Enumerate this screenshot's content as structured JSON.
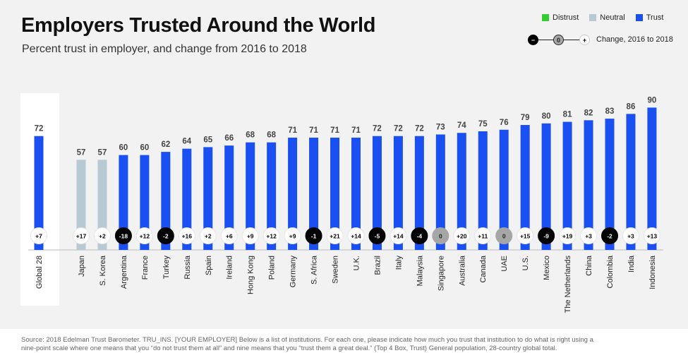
{
  "header": {
    "title": "Employers Trusted Around the World",
    "subtitle": "Percent trust in employer, and change from 2016 to 2018"
  },
  "legend": {
    "items": [
      {
        "label": "Distrust",
        "color": "#33cc33"
      },
      {
        "label": "Neutral",
        "color": "#b7c9d3"
      },
      {
        "label": "Trust",
        "color": "#1a4ff2"
      }
    ],
    "change": {
      "minus": "−",
      "zero": "0",
      "plus": "+",
      "label": "Change, 2016 to 2018"
    }
  },
  "source": "Source: 2018 Edelman Trust Barometer. TRU_INS. [YOUR EMPLOYER] Below is a list of institutions. For each one, please indicate how much you trust that institution to do what is right using a nine-point scale where one means that you “do not trust them at all” and nine means that you “trust them a great deal.” (Top 4 Box, Trust) General population, 28-country global total.",
  "chart_data": {
    "type": "bar",
    "title": "Employers Trusted Around the World",
    "subtitle": "Percent trust in employer, and change from 2016 to 2018",
    "ylim": [
      0,
      100
    ],
    "grid": false,
    "legend_position": "top-right",
    "colors": {
      "trust": "#1a4ff2",
      "neutral": "#b7c9d3",
      "distrust": "#33cc33",
      "decline": "#000000",
      "no_change": "#a6a6a6",
      "increase": "#ffffff"
    },
    "categories": [
      "Global 28",
      "Japan",
      "S. Korea",
      "Argentina",
      "France",
      "Turkey",
      "Russia",
      "Spain",
      "Ireland",
      "Hong Kong",
      "Poland",
      "Germany",
      "S. Africa",
      "Sweden",
      "U.K.",
      "Brazil",
      "Italy",
      "Malaysia",
      "Singapore",
      "Australia",
      "Canada",
      "UAE",
      "U.S.",
      "Mexico",
      "The Netherlands",
      "China",
      "Colombia",
      "India",
      "Indonesia"
    ],
    "values": [
      72,
      57,
      57,
      60,
      60,
      62,
      64,
      65,
      66,
      68,
      68,
      71,
      71,
      71,
      71,
      72,
      72,
      72,
      73,
      74,
      75,
      76,
      79,
      80,
      81,
      82,
      83,
      86,
      90
    ],
    "status": [
      "trust",
      "neutral",
      "neutral",
      "trust",
      "trust",
      "trust",
      "trust",
      "trust",
      "trust",
      "trust",
      "trust",
      "trust",
      "trust",
      "trust",
      "trust",
      "trust",
      "trust",
      "trust",
      "trust",
      "trust",
      "trust",
      "trust",
      "trust",
      "trust",
      "trust",
      "trust",
      "trust",
      "trust",
      "trust"
    ],
    "change_labels": [
      "+7",
      "+17",
      "+2",
      "-18",
      "+12",
      "-2",
      "+16",
      "+2",
      "+6",
      "+9",
      "+12",
      "+9",
      "-1",
      "+21",
      "+14",
      "-5",
      "+14",
      "-4",
      "0",
      "+20",
      "+11",
      "0",
      "+15",
      "-9",
      "+19",
      "+3",
      "-2",
      "+3",
      "+13"
    ]
  }
}
